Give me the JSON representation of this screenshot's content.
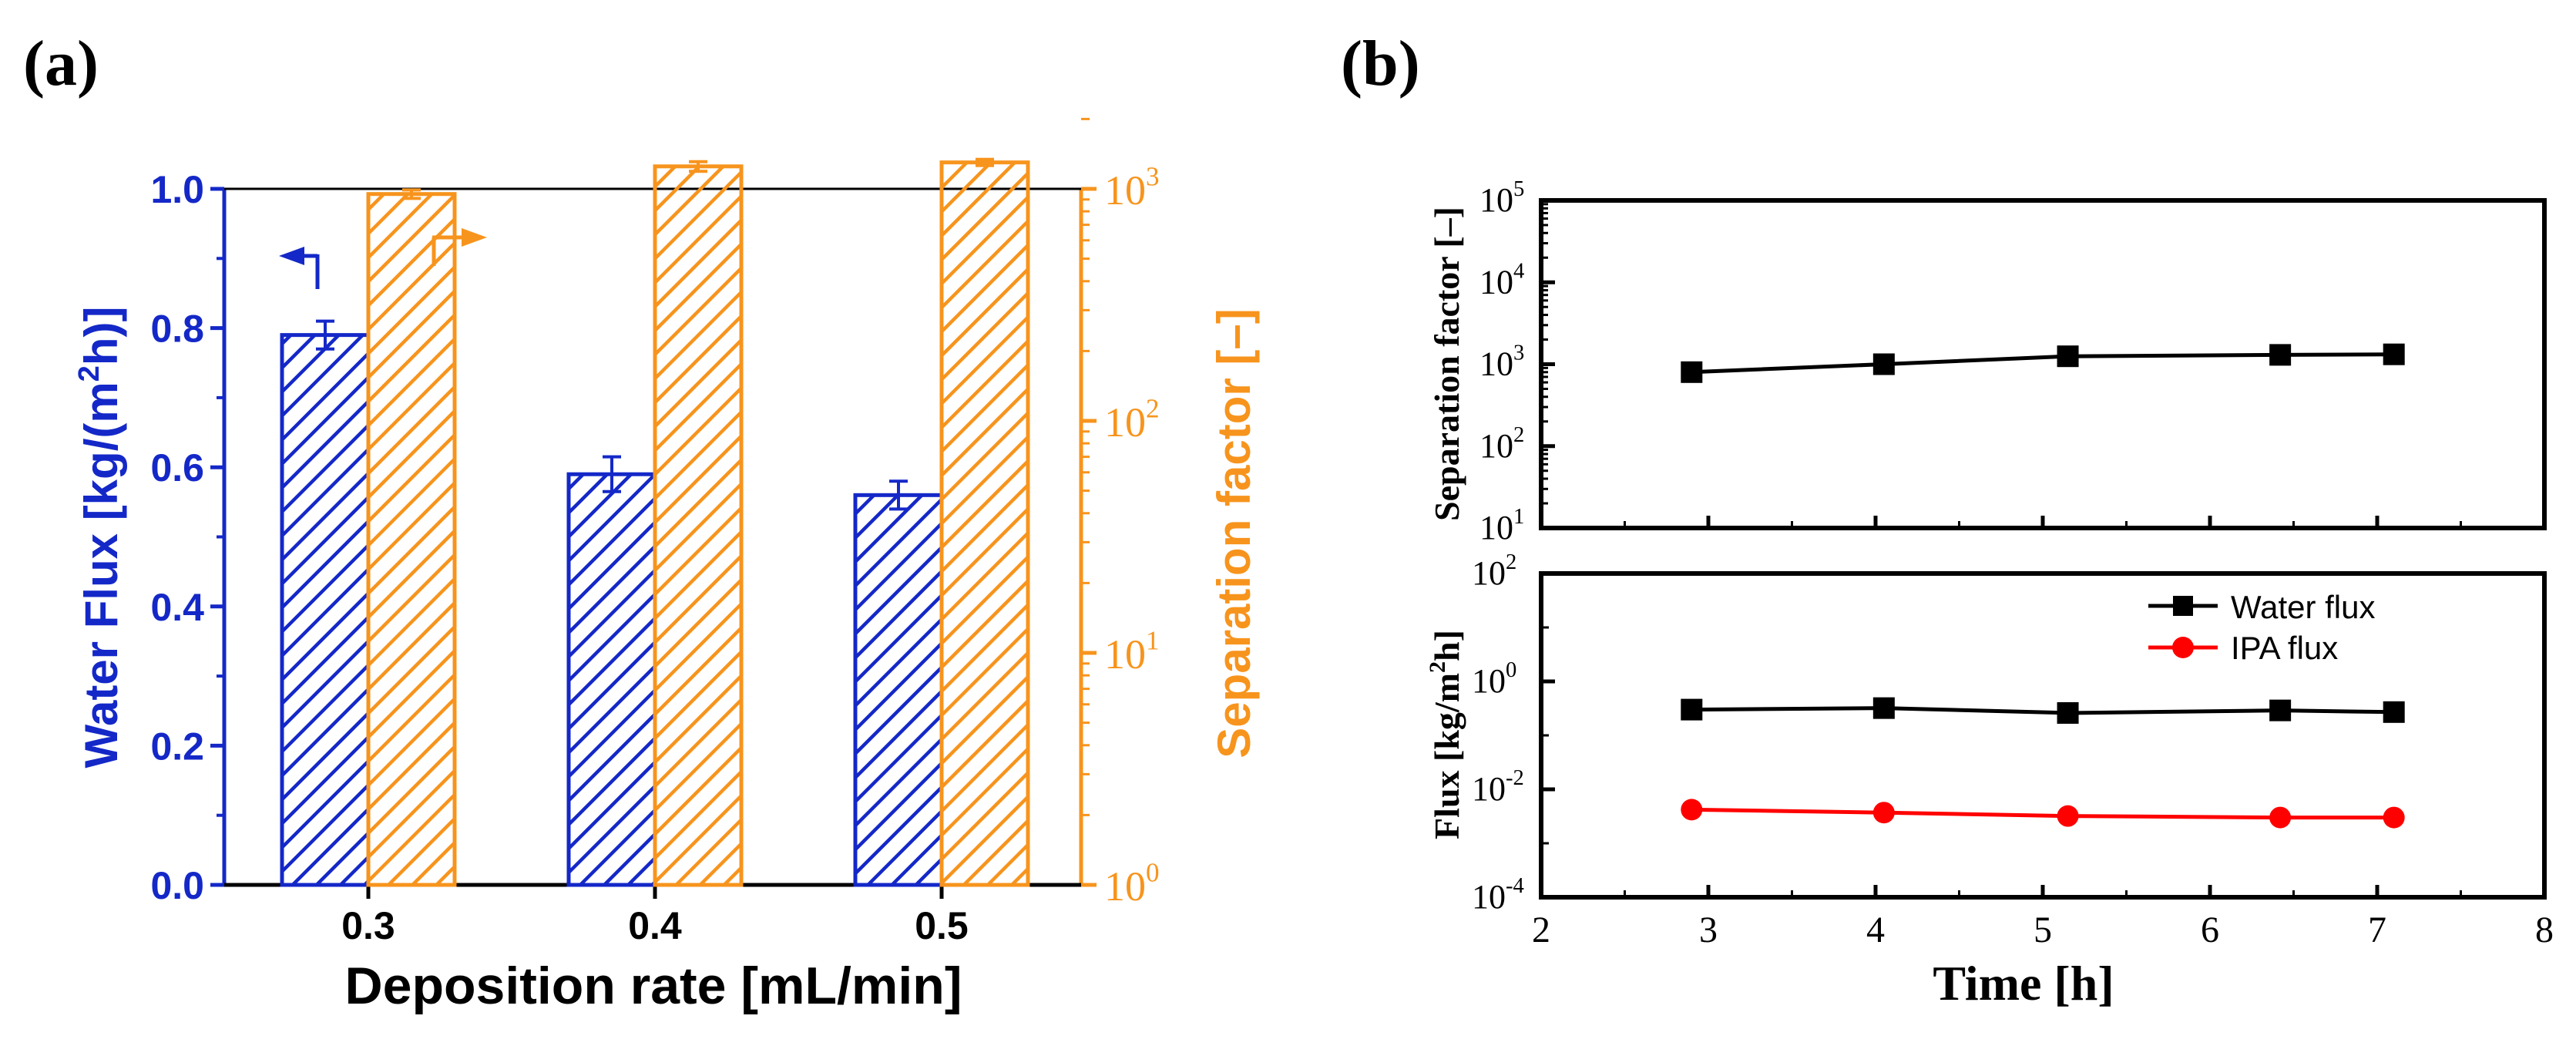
{
  "panel_a": {
    "label": "(a)",
    "left_axis_label_main": "Water Flux [kg/(m",
    "left_axis_label_sup": "2",
    "left_axis_label_end": "h)]",
    "right_axis_label": "Separation factor [–]",
    "x_axis_label": "Deposition rate [mL/min]",
    "left_ticks": [
      "0.0",
      "0.2",
      "0.4",
      "0.6",
      "0.8",
      "1.0"
    ],
    "right_ticks": [
      {
        "base": "10",
        "exp": "0"
      },
      {
        "base": "10",
        "exp": "1"
      },
      {
        "base": "10",
        "exp": "2"
      },
      {
        "base": "10",
        "exp": "3"
      }
    ],
    "colors": {
      "flux": "#1428c8",
      "separation": "#f7941d",
      "axis": "#000000"
    }
  },
  "panel_b": {
    "label": "(b)",
    "top_y_label": "Separation factor [–]",
    "bottom_y_label_main": "Flux [kg/m",
    "bottom_y_label_sup": "2",
    "bottom_y_label_end": "h]",
    "x_axis_label": "Time [h]",
    "x_ticks": [
      "2",
      "3",
      "4",
      "5",
      "6",
      "7",
      "8"
    ],
    "top_y_ticks": [
      {
        "base": "10",
        "exp": "1"
      },
      {
        "base": "10",
        "exp": "2"
      },
      {
        "base": "10",
        "exp": "3"
      },
      {
        "base": "10",
        "exp": "4"
      },
      {
        "base": "10",
        "exp": "5"
      }
    ],
    "bottom_y_ticks": [
      {
        "base": "10",
        "exp": "-4"
      },
      {
        "base": "10",
        "exp": "-2"
      },
      {
        "base": "10",
        "exp": "0"
      },
      {
        "base": "10",
        "exp": "2"
      }
    ],
    "legend": {
      "water": "Water flux",
      "ipa": "IPA flux"
    },
    "colors": {
      "water": "#000000",
      "ipa": "#ff0000"
    }
  },
  "chart_data": [
    {
      "type": "bar",
      "title": "(a)",
      "xlabel": "Deposition rate [mL/min]",
      "categories": [
        "0.3",
        "0.4",
        "0.5"
      ],
      "series": [
        {
          "name": "Water Flux",
          "axis": "left",
          "values": [
            0.79,
            0.59,
            0.56
          ],
          "errors": [
            0.02,
            0.025,
            0.02
          ]
        },
        {
          "name": "Separation factor",
          "axis": "right",
          "scale": "log",
          "values": [
            950,
            1250,
            1300
          ],
          "errors": [
            40,
            60,
            40
          ]
        }
      ],
      "ylabel_left": "Water Flux [kg/(m2h)]",
      "ylim_left": [
        0,
        1.0
      ],
      "ylabel_right": "Separation factor [–]",
      "ylim_right": [
        1,
        3000
      ]
    },
    {
      "type": "line",
      "title": "(b) top",
      "xlabel": "Time [h]",
      "xlim": [
        2,
        8
      ],
      "ylabel": "Separation factor [–]",
      "yscale": "log",
      "ylim": [
        10,
        100000
      ],
      "series": [
        {
          "name": "Separation factor",
          "x": [
            2.9,
            4.05,
            5.15,
            6.42,
            7.1
          ],
          "y": [
            800,
            1000,
            1250,
            1300,
            1320
          ]
        }
      ]
    },
    {
      "type": "line",
      "title": "(b) bottom",
      "xlabel": "Time [h]",
      "xlim": [
        2,
        8
      ],
      "ylabel": "Flux [kg/m2h]",
      "yscale": "log",
      "ylim": [
        0.0001,
        100
      ],
      "series": [
        {
          "name": "Water flux",
          "x": [
            2.9,
            4.05,
            5.15,
            6.42,
            7.1
          ],
          "y": [
            0.3,
            0.32,
            0.26,
            0.29,
            0.27
          ]
        },
        {
          "name": "IPA flux",
          "x": [
            2.9,
            4.05,
            5.15,
            6.42,
            7.1
          ],
          "y": [
            0.0042,
            0.0037,
            0.0032,
            0.003,
            0.003
          ]
        }
      ]
    }
  ]
}
